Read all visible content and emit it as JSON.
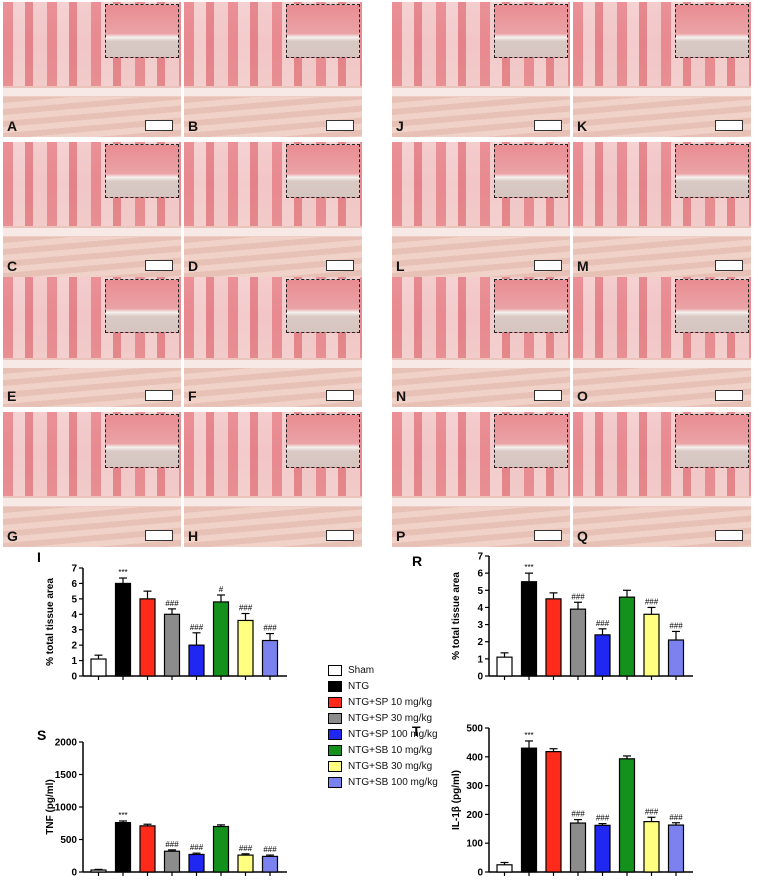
{
  "panels": [
    "A",
    "B",
    "C",
    "D",
    "E",
    "F",
    "G",
    "H",
    "J",
    "K",
    "L",
    "M",
    "N",
    "O",
    "P",
    "Q"
  ],
  "legend": [
    {
      "name": "Sham",
      "color": "#ffffff"
    },
    {
      "name": "NTG",
      "color": "#000000"
    },
    {
      "name": "NTG+SP 10 mg/kg",
      "color": "#ff2a1a"
    },
    {
      "name": "NTG+SP 30 mg/kg",
      "color": "#8c8c8c"
    },
    {
      "name": "NTG+SP 100 mg/kg",
      "color": "#1f27f0"
    },
    {
      "name": "NTG+SB 10 mg/kg",
      "color": "#13911c"
    },
    {
      "name": "NTG+SB 30 mg/kg",
      "color": "#ffff80"
    },
    {
      "name": "NTG+SB 100 mg/kg",
      "color": "#7b82f0"
    }
  ],
  "chart_data": [
    {
      "panel": "I",
      "type": "bar",
      "ylabel": "% total tissue area",
      "ylim": [
        0,
        7
      ],
      "ticks": [
        0,
        1,
        2,
        3,
        4,
        5,
        6,
        7
      ],
      "values": [
        1.1,
        6.0,
        5.0,
        4.0,
        2.0,
        4.8,
        3.6,
        2.3
      ],
      "errors": [
        0.25,
        0.35,
        0.5,
        0.35,
        0.8,
        0.45,
        0.45,
        0.45
      ],
      "annotations": [
        "",
        "***",
        "",
        "###",
        "###",
        "#",
        "###",
        "###"
      ]
    },
    {
      "panel": "R",
      "type": "bar",
      "ylabel": "% total tissue area",
      "ylim": [
        0,
        7
      ],
      "ticks": [
        0,
        1,
        2,
        3,
        4,
        5,
        6,
        7
      ],
      "values": [
        1.1,
        5.5,
        4.5,
        3.9,
        2.4,
        4.6,
        3.6,
        2.1
      ],
      "errors": [
        0.25,
        0.5,
        0.35,
        0.4,
        0.35,
        0.4,
        0.4,
        0.5
      ],
      "annotations": [
        "",
        "***",
        "",
        "###",
        "###",
        "",
        "###",
        "###"
      ]
    },
    {
      "panel": "S",
      "type": "bar",
      "ylabel": "TNF (pg/ml)",
      "ylim": [
        0,
        2000
      ],
      "ticks": [
        0,
        500,
        1000,
        1500,
        2000
      ],
      "values": [
        30,
        760,
        710,
        320,
        270,
        700,
        260,
        240
      ],
      "errors": [
        10,
        25,
        25,
        20,
        20,
        25,
        20,
        20
      ],
      "annotations": [
        "",
        "***",
        "",
        "###",
        "###",
        "",
        "###",
        "###"
      ]
    },
    {
      "panel": "T",
      "type": "bar",
      "ylabel": "IL-1β (pg/ml)",
      "ylim": [
        0,
        500
      ],
      "ticks": [
        0,
        100,
        200,
        300,
        400,
        500
      ],
      "values": [
        25,
        430,
        418,
        170,
        162,
        393,
        175,
        163
      ],
      "errors": [
        8,
        25,
        10,
        12,
        6,
        10,
        15,
        8
      ],
      "annotations": [
        "",
        "***",
        "",
        "###",
        "###",
        "",
        "###",
        "###"
      ]
    }
  ]
}
